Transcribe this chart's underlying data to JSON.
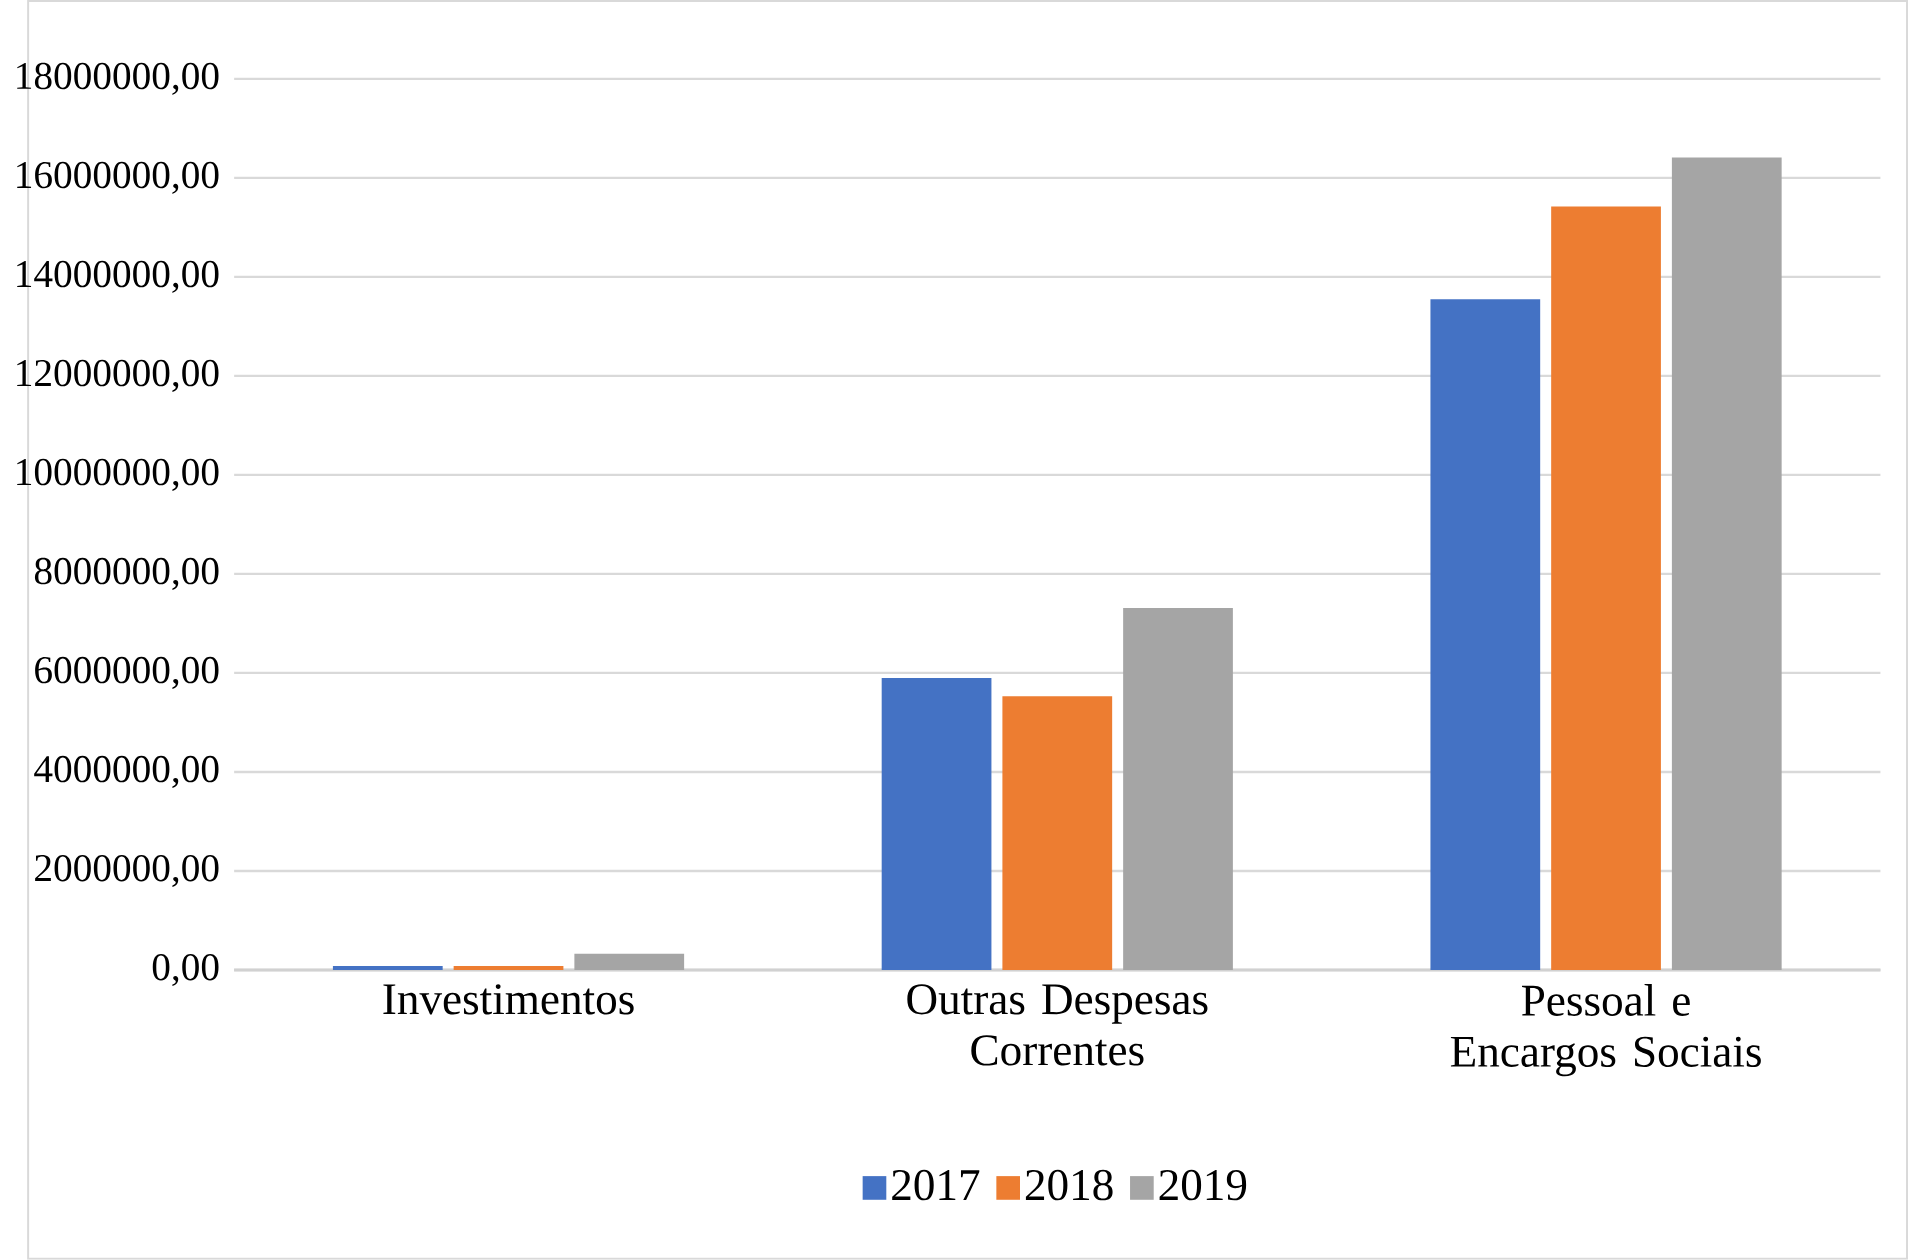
{
  "chart_data": {
    "type": "bar",
    "categories": [
      "Investimentos",
      "Outras Despesas Correntes",
      "Pessoal e Encargos Sociais"
    ],
    "series": [
      {
        "name": "2017",
        "color": "#4472c4",
        "values": [
          80000,
          5900000,
          13550000
        ]
      },
      {
        "name": "2018",
        "color": "#ed7d31",
        "values": [
          80000,
          5530000,
          15420000
        ]
      },
      {
        "name": "2019",
        "color": "#a5a5a5",
        "values": [
          330000,
          7310000,
          16410000
        ]
      }
    ],
    "ylim": [
      0,
      18000000
    ],
    "yticks": [
      {
        "value": 0,
        "label": "0,00"
      },
      {
        "value": 2000000,
        "label": "2000000,00"
      },
      {
        "value": 4000000,
        "label": "4000000,00"
      },
      {
        "value": 6000000,
        "label": "6000000,00"
      },
      {
        "value": 8000000,
        "label": "8000000,00"
      },
      {
        "value": 10000000,
        "label": "10000000,00"
      },
      {
        "value": 12000000,
        "label": "12000000,00"
      },
      {
        "value": 14000000,
        "label": "14000000,00"
      },
      {
        "value": 16000000,
        "label": "16000000,00"
      },
      {
        "value": 18000000,
        "label": "18000000,00"
      }
    ],
    "grid": "y",
    "legend": "bottom"
  }
}
